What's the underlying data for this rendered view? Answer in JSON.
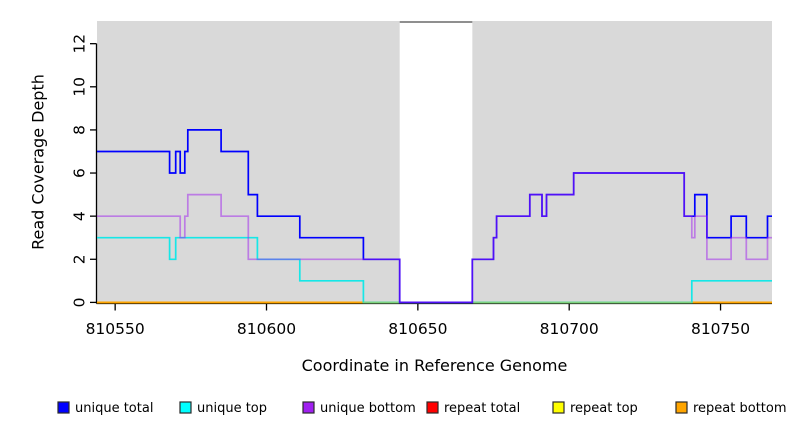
{
  "chart_data": {
    "type": "line",
    "subtype": "step-after",
    "title": "",
    "xlabel": "Coordinate in Reference Genome",
    "ylabel": "Read Coverage Depth",
    "xlim": [
      810544,
      810767
    ],
    "ylim": [
      0,
      13
    ],
    "x_ticks": [
      810550,
      810600,
      810650,
      810700,
      810750
    ],
    "y_ticks": [
      0,
      2,
      4,
      6,
      8,
      10,
      12
    ],
    "grid": false,
    "legend_position": "bottom",
    "plot_background_color": "#d9d9d9",
    "gap_band": {
      "x_start": 810644,
      "x_end": 810668,
      "color": "#ffffff",
      "top_border_color": "#8f8f8f"
    },
    "zero_overlap_color": "#7ed47e",
    "series": [
      {
        "name": "unique total",
        "color": "#0000ff",
        "line_opacity": 1,
        "points": [
          [
            810544,
            7
          ],
          [
            810568,
            6
          ],
          [
            810570,
            7
          ],
          [
            810571.5,
            6
          ],
          [
            810573,
            7
          ],
          [
            810574,
            8
          ],
          [
            810585,
            7
          ],
          [
            810594,
            5
          ],
          [
            810597,
            4
          ],
          [
            810611,
            3
          ],
          [
            810632,
            2
          ],
          [
            810644,
            0
          ],
          [
            810668,
            2
          ],
          [
            810675,
            3
          ],
          [
            810676,
            4
          ],
          [
            810687,
            5
          ],
          [
            810691,
            4
          ],
          [
            810692.5,
            5
          ],
          [
            810701.5,
            6
          ],
          [
            810738,
            4
          ],
          [
            810741.5,
            5
          ],
          [
            810745.5,
            3
          ],
          [
            810753.5,
            4
          ],
          [
            810758.5,
            3
          ],
          [
            810765.5,
            4
          ]
        ]
      },
      {
        "name": "unique top",
        "color": "#00e8e8",
        "line_opacity": 0.9,
        "points": [
          [
            810544,
            3
          ],
          [
            810568,
            2
          ],
          [
            810570,
            3
          ],
          [
            810597,
            2
          ],
          [
            810611,
            1
          ],
          [
            810632,
            0
          ],
          [
            810740.5,
            1
          ]
        ]
      },
      {
        "name": "unique bottom",
        "color": "#a020f0",
        "line_opacity": 0.5,
        "points": [
          [
            810544,
            4
          ],
          [
            810571.5,
            3
          ],
          [
            810573,
            4
          ],
          [
            810574,
            5
          ],
          [
            810585,
            4
          ],
          [
            810594,
            2
          ],
          [
            810644,
            0
          ],
          [
            810668,
            2
          ],
          [
            810675,
            3
          ],
          [
            810676,
            4
          ],
          [
            810687,
            5
          ],
          [
            810691,
            4
          ],
          [
            810692.5,
            5
          ],
          [
            810701.5,
            6
          ],
          [
            810738,
            4
          ],
          [
            810740.5,
            3
          ],
          [
            810741.5,
            4
          ],
          [
            810745.5,
            2
          ],
          [
            810753.5,
            3
          ],
          [
            810758.5,
            2
          ],
          [
            810765.5,
            3
          ]
        ]
      },
      {
        "name": "repeat total",
        "color": "#ff0000",
        "line_opacity": 1,
        "points": [
          [
            810544,
            0
          ]
        ]
      },
      {
        "name": "repeat top",
        "color": "#ffff00",
        "line_opacity": 1,
        "points": [
          [
            810544,
            0
          ]
        ]
      },
      {
        "name": "repeat bottom",
        "color": "#ffa500",
        "line_opacity": 1,
        "points": [
          [
            810544,
            0
          ]
        ]
      }
    ],
    "legend": [
      {
        "label": "unique total",
        "swatch_color": "#0000ff"
      },
      {
        "label": "unique top",
        "swatch_color": "#00ffff"
      },
      {
        "label": "unique bottom",
        "swatch_color": "#a020f0"
      },
      {
        "label": "repeat total",
        "swatch_color": "#ff0000"
      },
      {
        "label": "repeat top",
        "swatch_color": "#ffff00"
      },
      {
        "label": "repeat bottom",
        "swatch_color": "#ffa500"
      }
    ]
  }
}
